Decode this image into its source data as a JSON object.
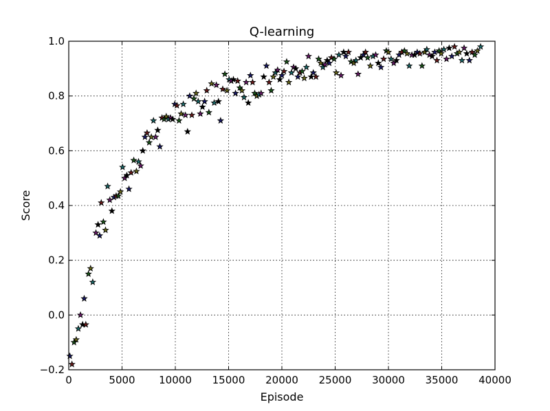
{
  "chart_data": {
    "type": "scatter",
    "title": "Q-learning",
    "xlabel": "Episode",
    "ylabel": "Score",
    "xlim": [
      0,
      40000
    ],
    "ylim": [
      -0.2,
      1.0
    ],
    "grid": true,
    "marker": "star",
    "xticks": [
      "0",
      "5000",
      "10000",
      "15000",
      "20000",
      "25000",
      "30000",
      "35000",
      "40000"
    ],
    "yticks": [
      "−0.2",
      "0.0",
      "0.2",
      "0.4",
      "0.6",
      "0.8",
      "1.0"
    ],
    "colors": [
      "#1a1a6e",
      "#6e1a1a",
      "#1a5a1a",
      "#6e6e1a",
      "#1a6e6e",
      "#6e1a6e",
      "#000000"
    ],
    "points": [
      [
        100,
        -0.15
      ],
      [
        300,
        -0.18
      ],
      [
        500,
        -0.1
      ],
      [
        700,
        -0.09
      ],
      [
        900,
        -0.05
      ],
      [
        1100,
        0.0
      ],
      [
        1300,
        -0.035
      ],
      [
        1450,
        0.06
      ],
      [
        1600,
        -0.035
      ],
      [
        1850,
        0.15
      ],
      [
        2050,
        0.17
      ],
      [
        2250,
        0.12
      ],
      [
        2550,
        0.3
      ],
      [
        2750,
        0.33
      ],
      [
        2900,
        0.29
      ],
      [
        3050,
        0.41
      ],
      [
        3250,
        0.34
      ],
      [
        3450,
        0.31
      ],
      [
        3650,
        0.47
      ],
      [
        3850,
        0.42
      ],
      [
        4050,
        0.38
      ],
      [
        4250,
        0.43
      ],
      [
        4450,
        0.435
      ],
      [
        4650,
        0.435
      ],
      [
        4850,
        0.45
      ],
      [
        5050,
        0.54
      ],
      [
        5250,
        0.5
      ],
      [
        5450,
        0.51
      ],
      [
        5650,
        0.46
      ],
      [
        5850,
        0.52
      ],
      [
        6100,
        0.565
      ],
      [
        6350,
        0.525
      ],
      [
        6550,
        0.56
      ],
      [
        6750,
        0.545
      ],
      [
        6950,
        0.6
      ],
      [
        7150,
        0.65
      ],
      [
        7350,
        0.665
      ],
      [
        7550,
        0.63
      ],
      [
        7750,
        0.65
      ],
      [
        7950,
        0.71
      ],
      [
        8150,
        0.65
      ],
      [
        8350,
        0.675
      ],
      [
        8550,
        0.615
      ],
      [
        8750,
        0.72
      ],
      [
        8950,
        0.715
      ],
      [
        9150,
        0.725
      ],
      [
        9350,
        0.715
      ],
      [
        9550,
        0.72
      ],
      [
        9750,
        0.715
      ],
      [
        9950,
        0.77
      ],
      [
        10150,
        0.765
      ],
      [
        10350,
        0.71
      ],
      [
        10550,
        0.735
      ],
      [
        10750,
        0.77
      ],
      [
        10950,
        0.73
      ],
      [
        11150,
        0.67
      ],
      [
        11350,
        0.8
      ],
      [
        11550,
        0.73
      ],
      [
        11750,
        0.79
      ],
      [
        11950,
        0.81
      ],
      [
        12150,
        0.78
      ],
      [
        12350,
        0.735
      ],
      [
        12550,
        0.76
      ],
      [
        12750,
        0.78
      ],
      [
        12950,
        0.82
      ],
      [
        13150,
        0.74
      ],
      [
        13400,
        0.845
      ],
      [
        13650,
        0.775
      ],
      [
        13850,
        0.84
      ],
      [
        14050,
        0.78
      ],
      [
        14250,
        0.71
      ],
      [
        14450,
        0.825
      ],
      [
        14650,
        0.88
      ],
      [
        14850,
        0.82
      ],
      [
        15050,
        0.86
      ],
      [
        15250,
        0.855
      ],
      [
        15450,
        0.86
      ],
      [
        15650,
        0.81
      ],
      [
        15850,
        0.855
      ],
      [
        16050,
        0.83
      ],
      [
        16250,
        0.82
      ],
      [
        16450,
        0.795
      ],
      [
        16650,
        0.85
      ],
      [
        16850,
        0.775
      ],
      [
        17050,
        0.875
      ],
      [
        17250,
        0.85
      ],
      [
        17450,
        0.81
      ],
      [
        17650,
        0.8
      ],
      [
        17850,
        0.805
      ],
      [
        18050,
        0.81
      ],
      [
        18300,
        0.87
      ],
      [
        18550,
        0.91
      ],
      [
        18800,
        0.85
      ],
      [
        19000,
        0.82
      ],
      [
        19200,
        0.87
      ],
      [
        19400,
        0.885
      ],
      [
        19600,
        0.895
      ],
      [
        19800,
        0.86
      ],
      [
        20000,
        0.875
      ],
      [
        20200,
        0.89
      ],
      [
        20450,
        0.925
      ],
      [
        20650,
        0.85
      ],
      [
        20900,
        0.885
      ],
      [
        21100,
        0.905
      ],
      [
        21300,
        0.9
      ],
      [
        21500,
        0.87
      ],
      [
        21700,
        0.885
      ],
      [
        21900,
        0.89
      ],
      [
        22100,
        0.865
      ],
      [
        22300,
        0.905
      ],
      [
        22500,
        0.945
      ],
      [
        22750,
        0.87
      ],
      [
        22950,
        0.885
      ],
      [
        23200,
        0.87
      ],
      [
        23450,
        0.935
      ],
      [
        23650,
        0.92
      ],
      [
        23850,
        0.905
      ],
      [
        24050,
        0.915
      ],
      [
        24250,
        0.93
      ],
      [
        24450,
        0.92
      ],
      [
        24650,
        0.94
      ],
      [
        24900,
        0.935
      ],
      [
        25100,
        0.885
      ],
      [
        25350,
        0.95
      ],
      [
        25550,
        0.875
      ],
      [
        25800,
        0.96
      ],
      [
        26000,
        0.945
      ],
      [
        26250,
        0.96
      ],
      [
        26500,
        0.925
      ],
      [
        26750,
        0.92
      ],
      [
        26950,
        0.93
      ],
      [
        27150,
        0.88
      ],
      [
        27400,
        0.94
      ],
      [
        27650,
        0.95
      ],
      [
        27850,
        0.96
      ],
      [
        28050,
        0.94
      ],
      [
        28300,
        0.91
      ],
      [
        28550,
        0.945
      ],
      [
        28800,
        0.95
      ],
      [
        29050,
        0.92
      ],
      [
        29300,
        0.905
      ],
      [
        29550,
        0.935
      ],
      [
        29800,
        0.965
      ],
      [
        30000,
        0.96
      ],
      [
        30250,
        0.935
      ],
      [
        30500,
        0.92
      ],
      [
        30750,
        0.93
      ],
      [
        31000,
        0.95
      ],
      [
        31250,
        0.96
      ],
      [
        31500,
        0.965
      ],
      [
        31750,
        0.955
      ],
      [
        31950,
        0.91
      ],
      [
        32200,
        0.95
      ],
      [
        32450,
        0.95
      ],
      [
        32700,
        0.96
      ],
      [
        32950,
        0.955
      ],
      [
        33150,
        0.91
      ],
      [
        33400,
        0.96
      ],
      [
        33600,
        0.97
      ],
      [
        33850,
        0.95
      ],
      [
        34100,
        0.945
      ],
      [
        34350,
        0.96
      ],
      [
        34550,
        0.93
      ],
      [
        34750,
        0.965
      ],
      [
        34950,
        0.955
      ],
      [
        35200,
        0.97
      ],
      [
        35450,
        0.935
      ],
      [
        35700,
        0.975
      ],
      [
        35950,
        0.945
      ],
      [
        36200,
        0.98
      ],
      [
        36450,
        0.955
      ],
      [
        36650,
        0.96
      ],
      [
        36900,
        0.93
      ],
      [
        37100,
        0.975
      ],
      [
        37350,
        0.955
      ],
      [
        37600,
        0.93
      ],
      [
        37850,
        0.96
      ],
      [
        38100,
        0.95
      ],
      [
        38350,
        0.965
      ],
      [
        38650,
        0.98
      ]
    ]
  }
}
